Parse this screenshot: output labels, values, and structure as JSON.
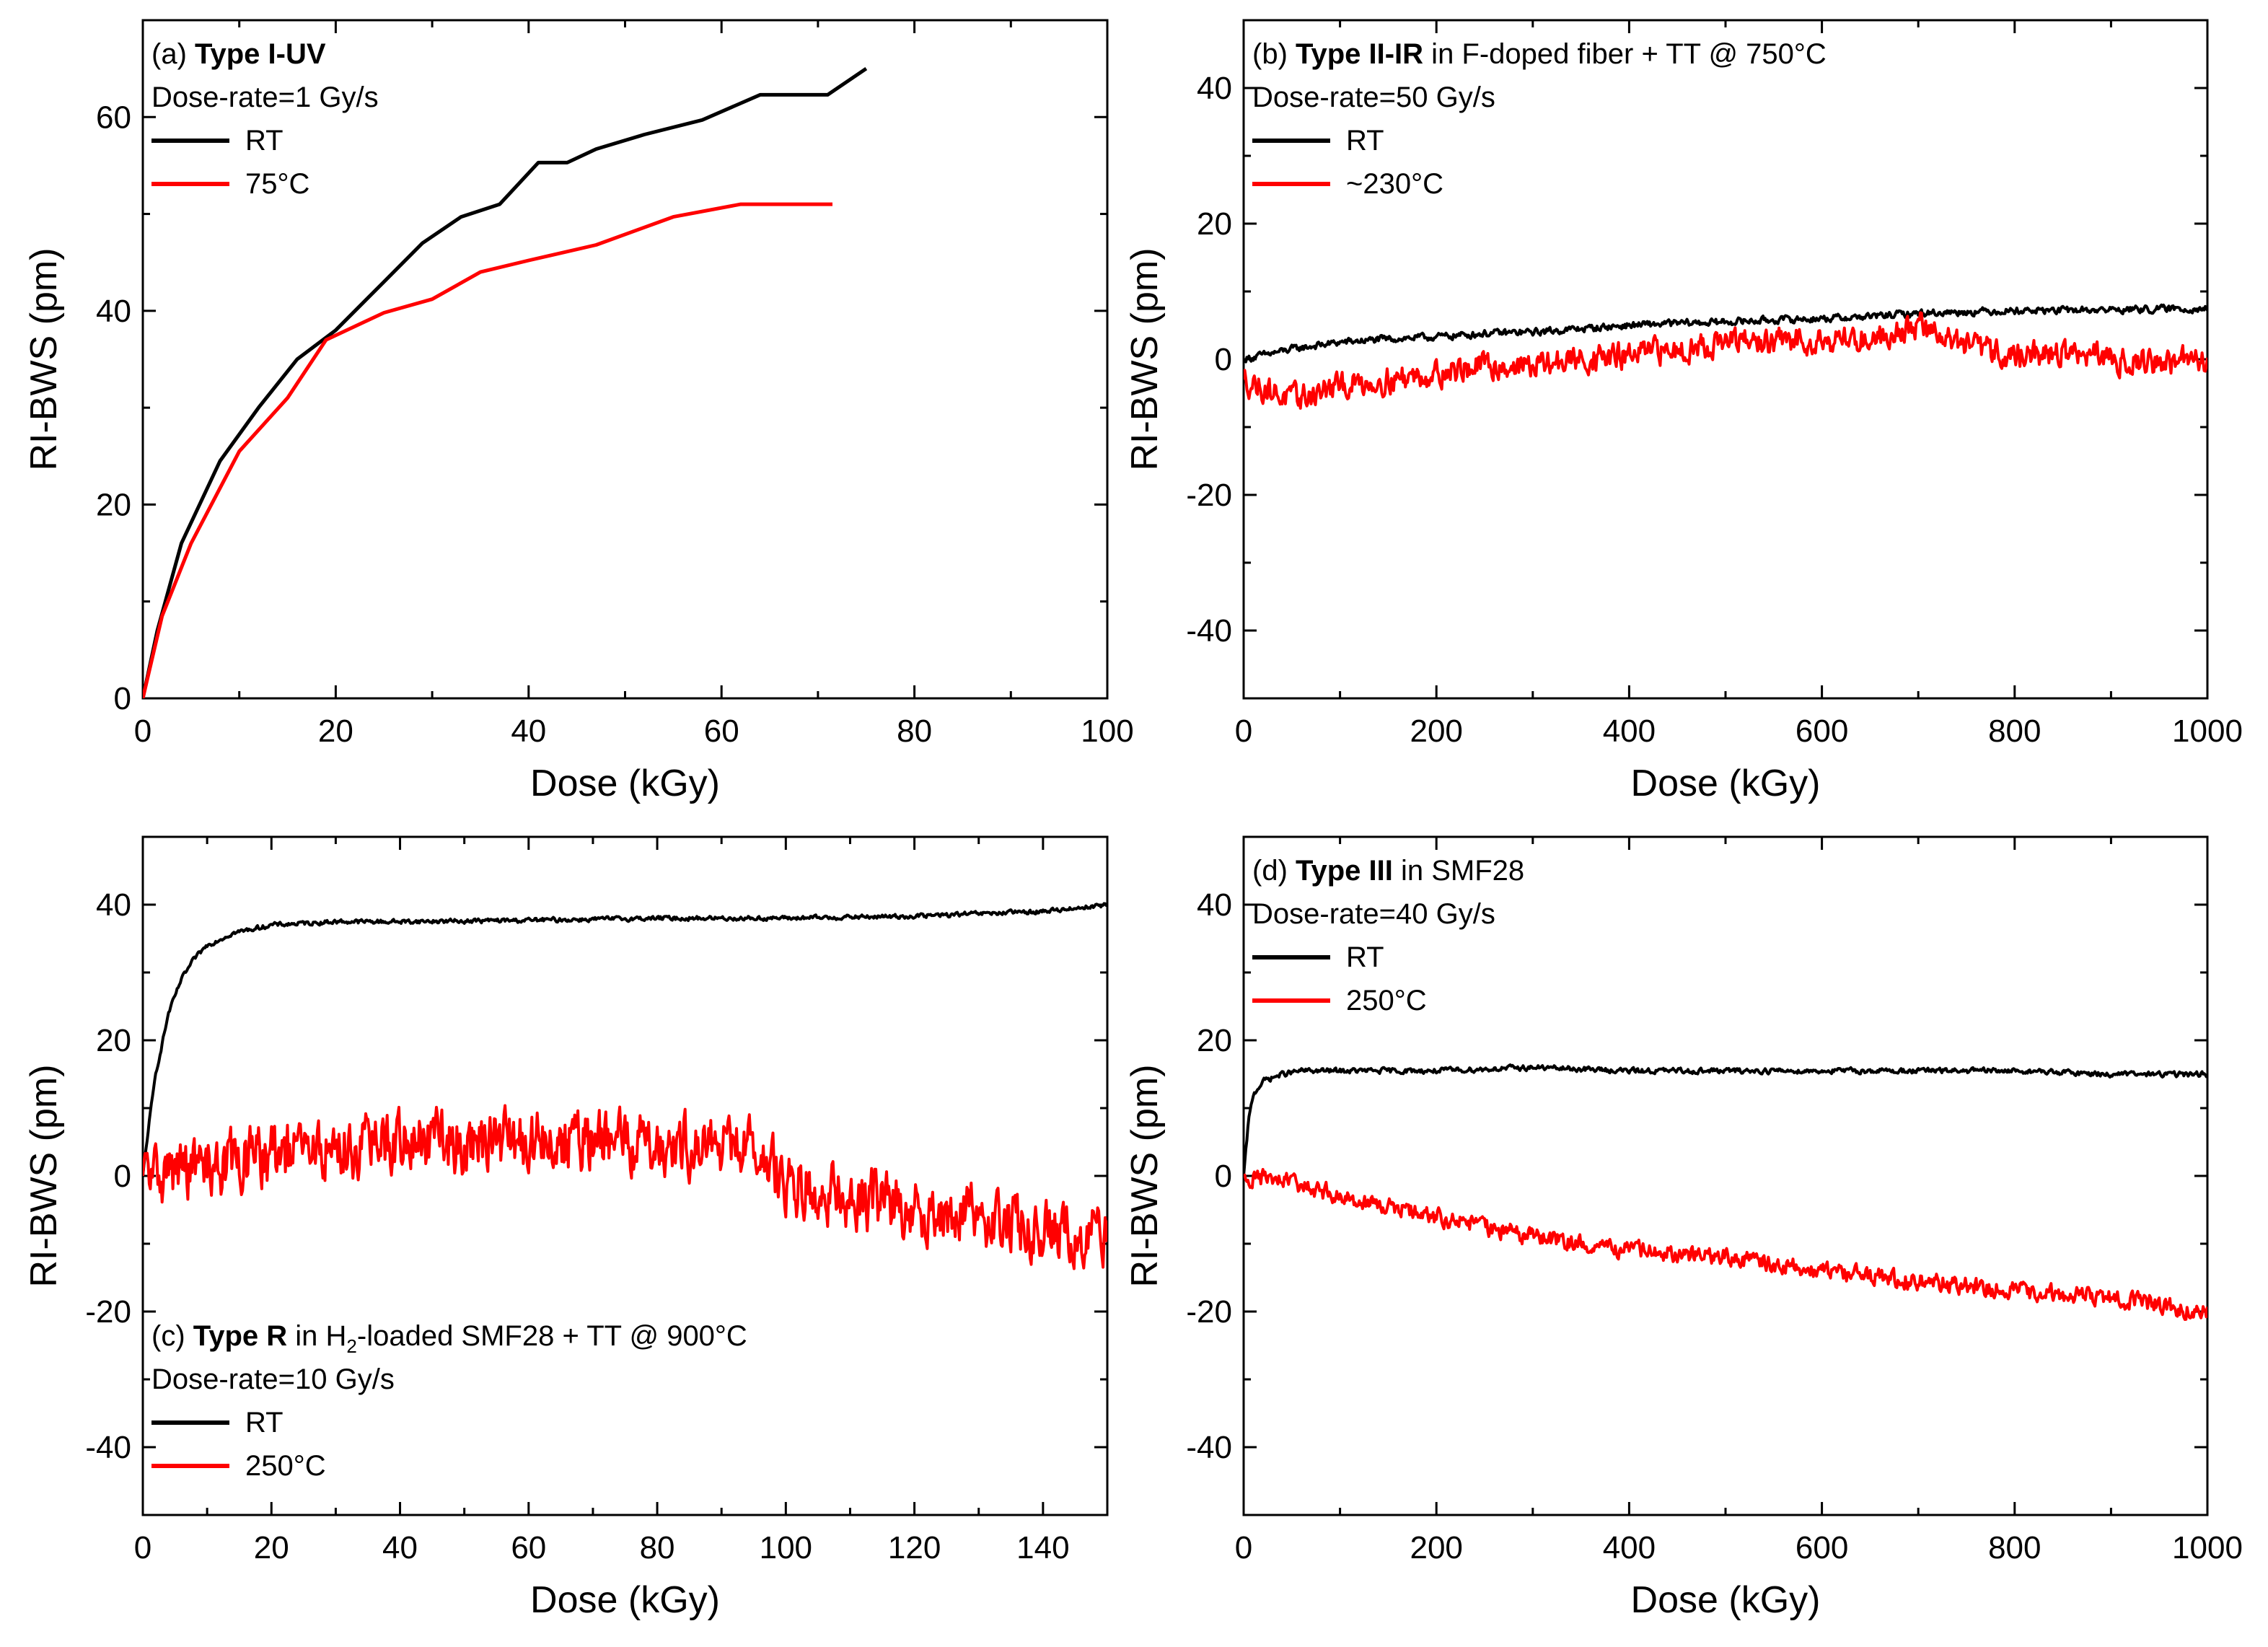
{
  "figure": {
    "colors": {
      "rt": "#000000",
      "hot": "#ff0000"
    }
  },
  "chart_data": [
    {
      "id": "a",
      "type": "line",
      "xlabel": "Dose (kGy)",
      "ylabel": "RI-BWS (pm)",
      "xlim": [
        0,
        100
      ],
      "ylim": [
        0,
        70
      ],
      "xticks": [
        0,
        20,
        40,
        60,
        80,
        100
      ],
      "yticks": [
        0,
        20,
        40,
        60
      ],
      "annotation": {
        "prefix": "(a) ",
        "bold": "Type I-UV",
        "suffix": "",
        "line2": "Dose-rate=1 Gy/s"
      },
      "legend_placement": "top-left",
      "series": [
        {
          "name": "RT",
          "color": "#000000",
          "x": [
            0,
            1.5,
            4,
            8,
            12,
            16,
            20,
            25,
            29,
            33,
            37,
            41,
            44,
            47,
            52,
            58,
            64,
            71,
            75
          ],
          "y": [
            0,
            7,
            16,
            24.5,
            30,
            35,
            38,
            43,
            47,
            49.7,
            51,
            55.3,
            55.3,
            56.7,
            58.2,
            59.7,
            62.3,
            62.3,
            65
          ]
        },
        {
          "name": "75°C",
          "color": "#ff0000",
          "x": [
            0,
            2,
            5,
            10,
            15,
            19,
            25,
            30,
            35,
            40,
            47,
            55,
            62,
            67,
            71.5
          ],
          "y": [
            0,
            8.5,
            16,
            25.5,
            31,
            37,
            39.8,
            41.2,
            44,
            45.2,
            46.8,
            49.7,
            51,
            51,
            51
          ]
        }
      ]
    },
    {
      "id": "b",
      "type": "line",
      "xlabel": "Dose (kGy)",
      "ylabel": "RI-BWS (pm)",
      "xlim": [
        0,
        1000
      ],
      "ylim": [
        -50,
        50
      ],
      "xticks": [
        0,
        200,
        400,
        600,
        800,
        1000
      ],
      "yticks": [
        -40,
        -20,
        0,
        20,
        40
      ],
      "annotation": {
        "prefix": "(b) ",
        "bold": "Type II-IR",
        "suffix": " in F-doped fiber + TT @ 750°C",
        "line2": "Dose-rate=50 Gy/s"
      },
      "legend_placement": "top-left",
      "series": [
        {
          "name": "RT",
          "color": "#000000",
          "x": [
            0,
            50,
            100,
            150,
            200,
            250,
            300,
            350,
            400,
            450,
            500,
            550,
            600,
            650,
            700,
            750,
            800,
            850,
            900,
            950,
            1000
          ],
          "y": [
            0,
            1.5,
            2.5,
            3,
            3.3,
            3.8,
            4,
            4.5,
            5,
            5.3,
            5.5,
            5.8,
            6,
            6.3,
            6.8,
            7,
            7.2,
            7.2,
            7.3,
            7.4,
            7.5
          ],
          "noise": 0.8
        },
        {
          "name": "~230°C",
          "color": "#ff0000",
          "x": [
            0,
            50,
            100,
            150,
            200,
            250,
            300,
            350,
            400,
            450,
            500,
            550,
            600,
            650,
            700,
            750,
            800,
            850,
            900,
            950,
            1000
          ],
          "y": [
            -3,
            -6,
            -4,
            -3,
            -2,
            -1,
            -1,
            0,
            0.5,
            1.5,
            2.5,
            2.5,
            3,
            3,
            5,
            2,
            0.5,
            1,
            0,
            -0.5,
            0
          ],
          "noise": 3
        }
      ]
    },
    {
      "id": "c",
      "type": "line",
      "xlabel": "Dose (kGy)",
      "ylabel": "RI-BWS (pm)",
      "xlim": [
        0,
        150
      ],
      "ylim": [
        -50,
        50
      ],
      "xticks": [
        0,
        20,
        40,
        60,
        80,
        100,
        120,
        140
      ],
      "yticks": [
        -40,
        -20,
        0,
        20,
        40
      ],
      "annotation": {
        "prefix": "(c) ",
        "bold": "Type R",
        "suffix": " in H",
        "sub": "2",
        "suffix2": "-loaded SMF28 + TT @ 900°C",
        "line2": "Dose-rate=10 Gy/s"
      },
      "legend_placement": "bottom-left",
      "series": [
        {
          "name": "RT",
          "color": "#000000",
          "x": [
            0,
            1,
            2,
            4,
            6,
            8,
            10,
            14,
            20,
            30,
            40,
            60,
            80,
            100,
            120,
            140,
            150
          ],
          "y": [
            0,
            8,
            15,
            24,
            29,
            32,
            34,
            35.8,
            37,
            37.5,
            37.5,
            37.7,
            38,
            38,
            38.3,
            39,
            40
          ],
          "noise": 0.5
        },
        {
          "name": "250°C",
          "color": "#ff0000",
          "x": [
            0,
            20,
            40,
            60,
            80,
            95,
            100,
            110,
            120,
            130,
            140,
            150
          ],
          "y": [
            0,
            3,
            5,
            5,
            5,
            4,
            -1,
            -3,
            -5,
            -6,
            -8,
            -9
          ],
          "noise": 7
        }
      ]
    },
    {
      "id": "d",
      "type": "line",
      "xlabel": "Dose (kGy)",
      "ylabel": "RI-BWS (pm)",
      "xlim": [
        0,
        1000
      ],
      "ylim": [
        -50,
        50
      ],
      "xticks": [
        0,
        200,
        400,
        600,
        800,
        1000
      ],
      "yticks": [
        -40,
        -20,
        0,
        20,
        40
      ],
      "annotation": {
        "prefix": "(d) ",
        "bold": "Type III",
        "suffix": " in SMF28",
        "line2": "Dose-rate=40 Gy/s"
      },
      "legend_placement": "top-left",
      "series": [
        {
          "name": "RT",
          "color": "#000000",
          "x": [
            0,
            5,
            10,
            20,
            40,
            60,
            100,
            200,
            300,
            400,
            500,
            600,
            700,
            800,
            900,
            1000
          ],
          "y": [
            0,
            8,
            12,
            14,
            15,
            15.5,
            15.5,
            15.5,
            16,
            15.5,
            15.5,
            15.5,
            15.5,
            15.5,
            15,
            15
          ],
          "noise": 0.6
        },
        {
          "name": "250°C",
          "color": "#ff0000",
          "x": [
            0,
            50,
            100,
            200,
            300,
            400,
            500,
            600,
            700,
            800,
            900,
            1000
          ],
          "y": [
            0,
            -1,
            -3,
            -6,
            -9,
            -11,
            -12,
            -14,
            -15.5,
            -17,
            -18,
            -20
          ],
          "noise": 2
        }
      ]
    }
  ]
}
